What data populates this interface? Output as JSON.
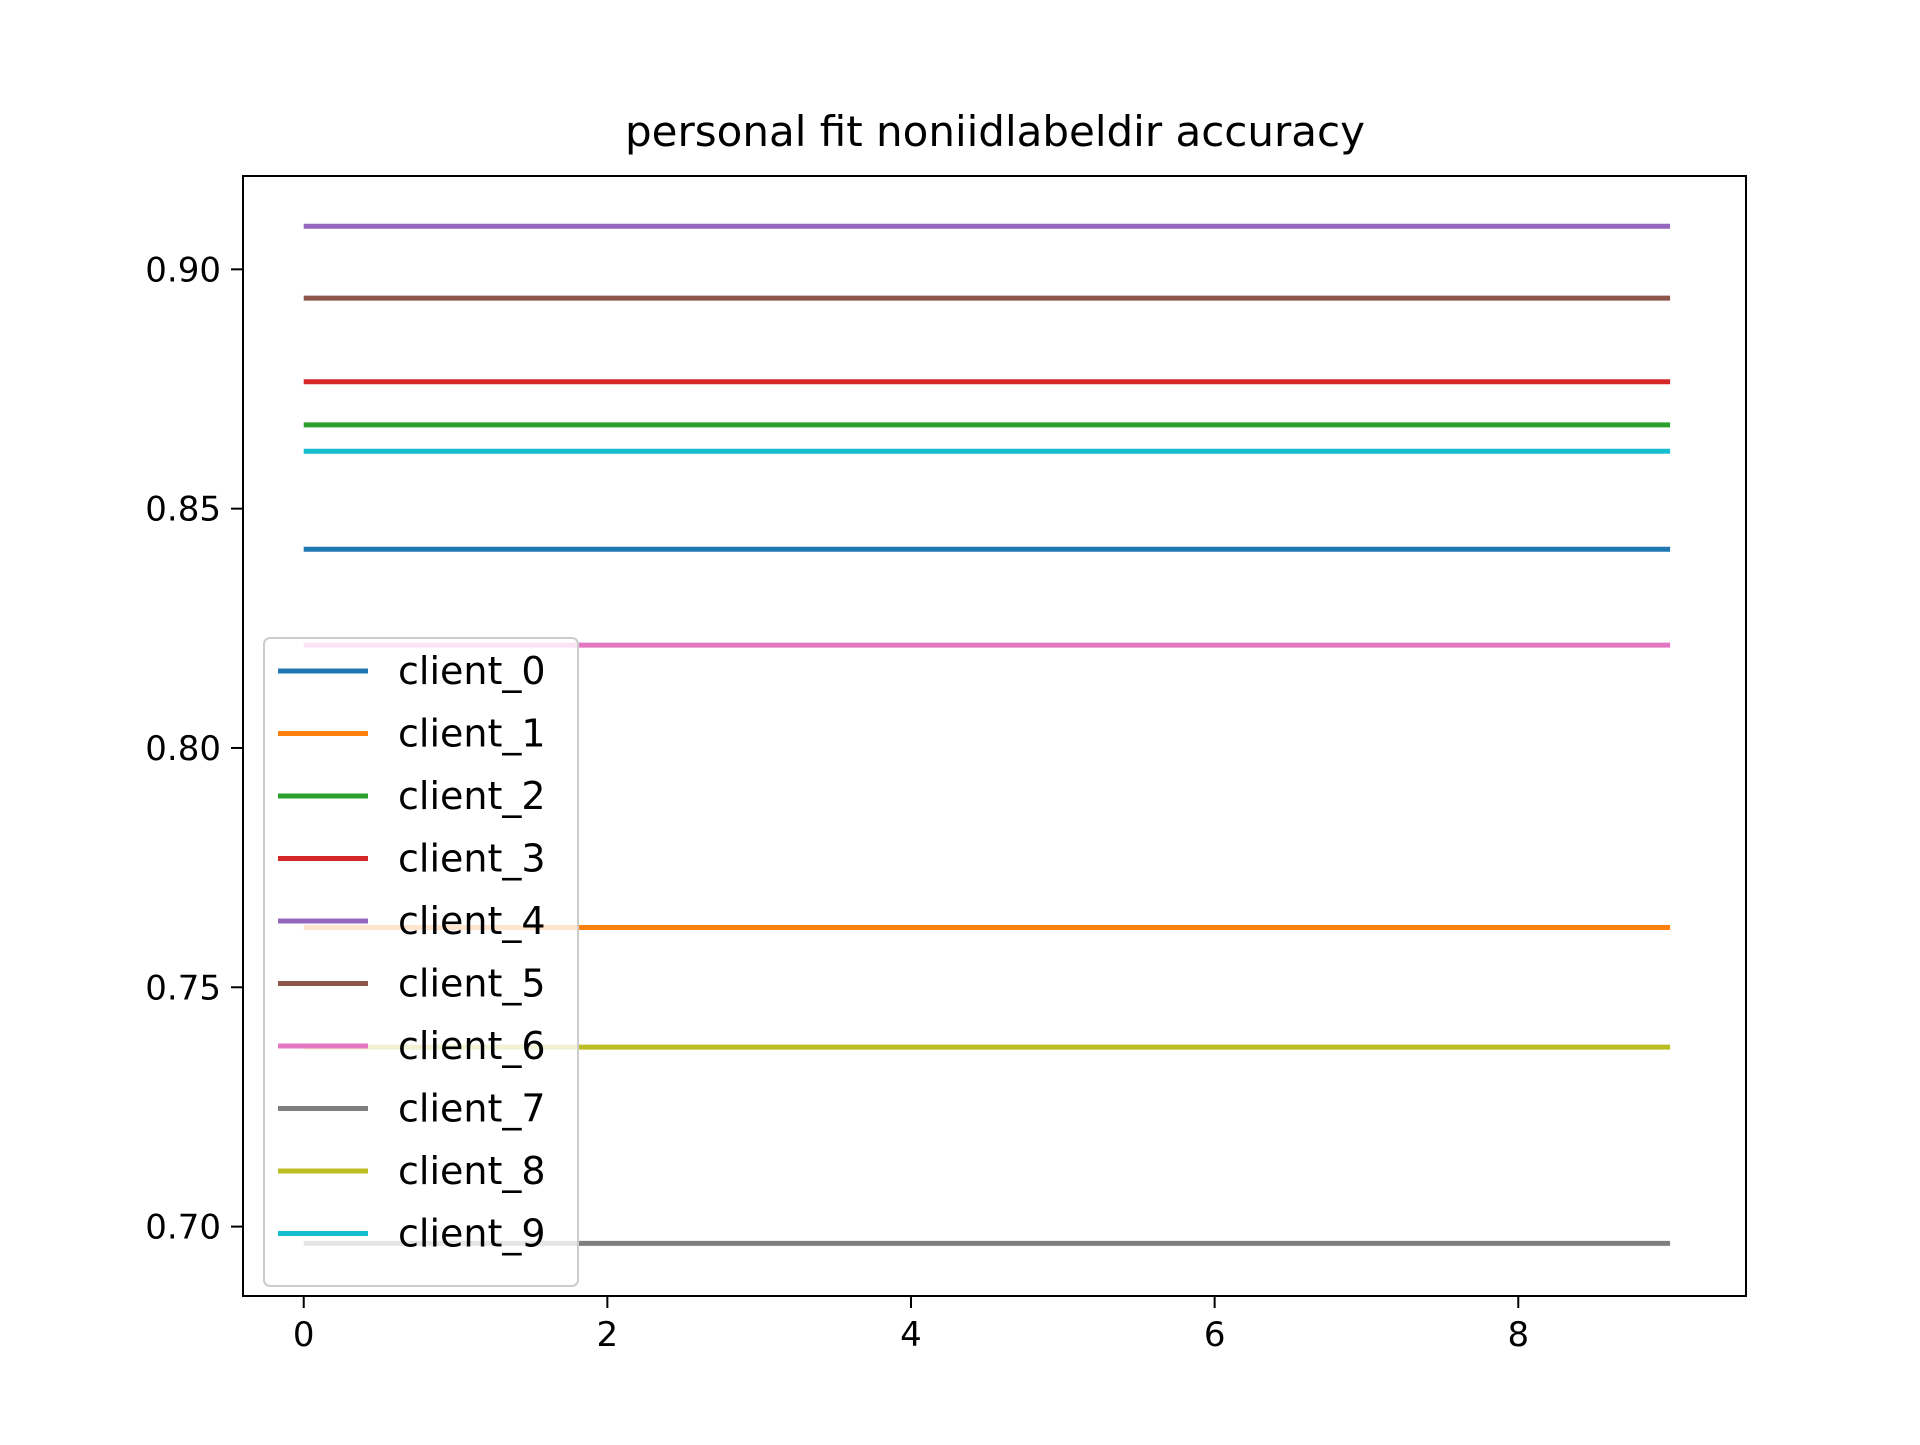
{
  "chart_data": {
    "type": "line",
    "title": "personal fit noniidlabeldir accuracy",
    "xlabel": "",
    "ylabel": "",
    "xlim": [
      -0.4,
      9.5
    ],
    "ylim": [
      0.6855,
      0.9195
    ],
    "xticks": [
      0,
      2,
      4,
      6,
      8
    ],
    "xtick_labels": [
      "0",
      "2",
      "4",
      "6",
      "8"
    ],
    "yticks": [
      0.7,
      0.75,
      0.8,
      0.85,
      0.9
    ],
    "ytick_labels": [
      "0.70",
      "0.75",
      "0.80",
      "0.85",
      "0.90"
    ],
    "grid": false,
    "legend_position": "lower-left",
    "x": [
      0,
      1,
      2,
      3,
      4,
      5,
      6,
      7,
      8,
      9
    ],
    "series": [
      {
        "name": "client_0",
        "color": "#1f77b4",
        "values": [
          0.8415,
          0.8415,
          0.8415,
          0.8415,
          0.8415,
          0.8415,
          0.8415,
          0.8415,
          0.8415,
          0.8415
        ]
      },
      {
        "name": "client_1",
        "color": "#ff7f0e",
        "values": [
          0.7625,
          0.7625,
          0.7625,
          0.7625,
          0.7625,
          0.7625,
          0.7625,
          0.7625,
          0.7625,
          0.7625
        ]
      },
      {
        "name": "client_2",
        "color": "#2ca02c",
        "values": [
          0.8675,
          0.8675,
          0.8675,
          0.8675,
          0.8675,
          0.8675,
          0.8675,
          0.8675,
          0.8675,
          0.8675
        ]
      },
      {
        "name": "client_3",
        "color": "#d62728",
        "values": [
          0.8765,
          0.8765,
          0.8765,
          0.8765,
          0.8765,
          0.8765,
          0.8765,
          0.8765,
          0.8765,
          0.8765
        ]
      },
      {
        "name": "client_4",
        "color": "#9467bd",
        "values": [
          0.909,
          0.909,
          0.909,
          0.909,
          0.909,
          0.909,
          0.909,
          0.909,
          0.909,
          0.909
        ]
      },
      {
        "name": "client_5",
        "color": "#8c564b",
        "values": [
          0.894,
          0.894,
          0.894,
          0.894,
          0.894,
          0.894,
          0.894,
          0.894,
          0.894,
          0.894
        ]
      },
      {
        "name": "client_6",
        "color": "#e377c2",
        "values": [
          0.8215,
          0.8215,
          0.8215,
          0.8215,
          0.8215,
          0.8215,
          0.8215,
          0.8215,
          0.8215,
          0.8215
        ]
      },
      {
        "name": "client_7",
        "color": "#7f7f7f",
        "values": [
          0.6965,
          0.6965,
          0.6965,
          0.6965,
          0.6965,
          0.6965,
          0.6965,
          0.6965,
          0.6965,
          0.6965
        ]
      },
      {
        "name": "client_8",
        "color": "#bcbd22",
        "values": [
          0.7375,
          0.7375,
          0.7375,
          0.7375,
          0.7375,
          0.7375,
          0.7375,
          0.7375,
          0.7375,
          0.7375
        ]
      },
      {
        "name": "client_9",
        "color": "#17becf",
        "values": [
          0.862,
          0.862,
          0.862,
          0.862,
          0.862,
          0.862,
          0.862,
          0.862,
          0.862,
          0.862
        ]
      }
    ]
  }
}
